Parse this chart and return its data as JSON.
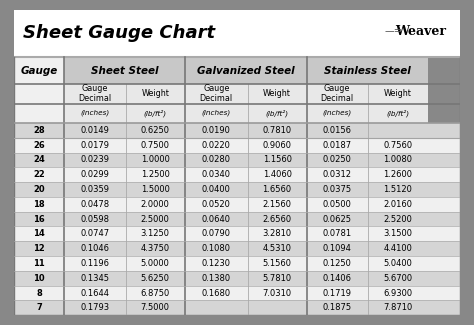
{
  "title": "Sheet Gauge Chart",
  "bg_outer": "#888888",
  "bg_white": "#ffffff",
  "bg_header_section": "#d8d8d8",
  "bg_row_dark": "#d5d5d5",
  "bg_row_light": "#f0f0f0",
  "gauges": [
    28,
    26,
    24,
    22,
    20,
    18,
    16,
    14,
    12,
    11,
    10,
    8,
    7
  ],
  "sheet_steel_dec": [
    "0.0149",
    "0.0179",
    "0.0239",
    "0.0299",
    "0.0359",
    "0.0478",
    "0.0598",
    "0.0747",
    "0.1046",
    "0.1196",
    "0.1345",
    "0.1644",
    "0.1793"
  ],
  "sheet_steel_wt": [
    "0.6250",
    "0.7500",
    "1.0000",
    "1.2500",
    "1.5000",
    "2.0000",
    "2.5000",
    "3.1250",
    "4.3750",
    "5.0000",
    "5.6250",
    "6.8750",
    "7.5000"
  ],
  "galv_dec": [
    "0.0190",
    "0.0220",
    "0.0280",
    "0.0340",
    "0.0400",
    "0.0520",
    "0.0640",
    "0.0790",
    "0.1080",
    "0.1230",
    "0.1380",
    "0.1680",
    ""
  ],
  "galv_wt": [
    "0.7810",
    "0.9060",
    "1.1560",
    "1.4060",
    "1.6560",
    "2.1560",
    "2.6560",
    "3.2810",
    "4.5310",
    "5.1560",
    "5.7810",
    "7.0310",
    ""
  ],
  "ss_dec": [
    "0.0156",
    "0.0187",
    "0.0250",
    "0.0312",
    "0.0375",
    "0.0500",
    "0.0625",
    "0.0781",
    "0.1094",
    "0.1250",
    "0.1406",
    "0.1719",
    "0.1875"
  ],
  "ss_wt": [
    "",
    "0.7560",
    "1.0080",
    "1.2600",
    "1.5120",
    "2.0160",
    "2.5200",
    "3.1500",
    "4.4100",
    "5.0400",
    "5.6700",
    "6.9300",
    "7.8710"
  ]
}
